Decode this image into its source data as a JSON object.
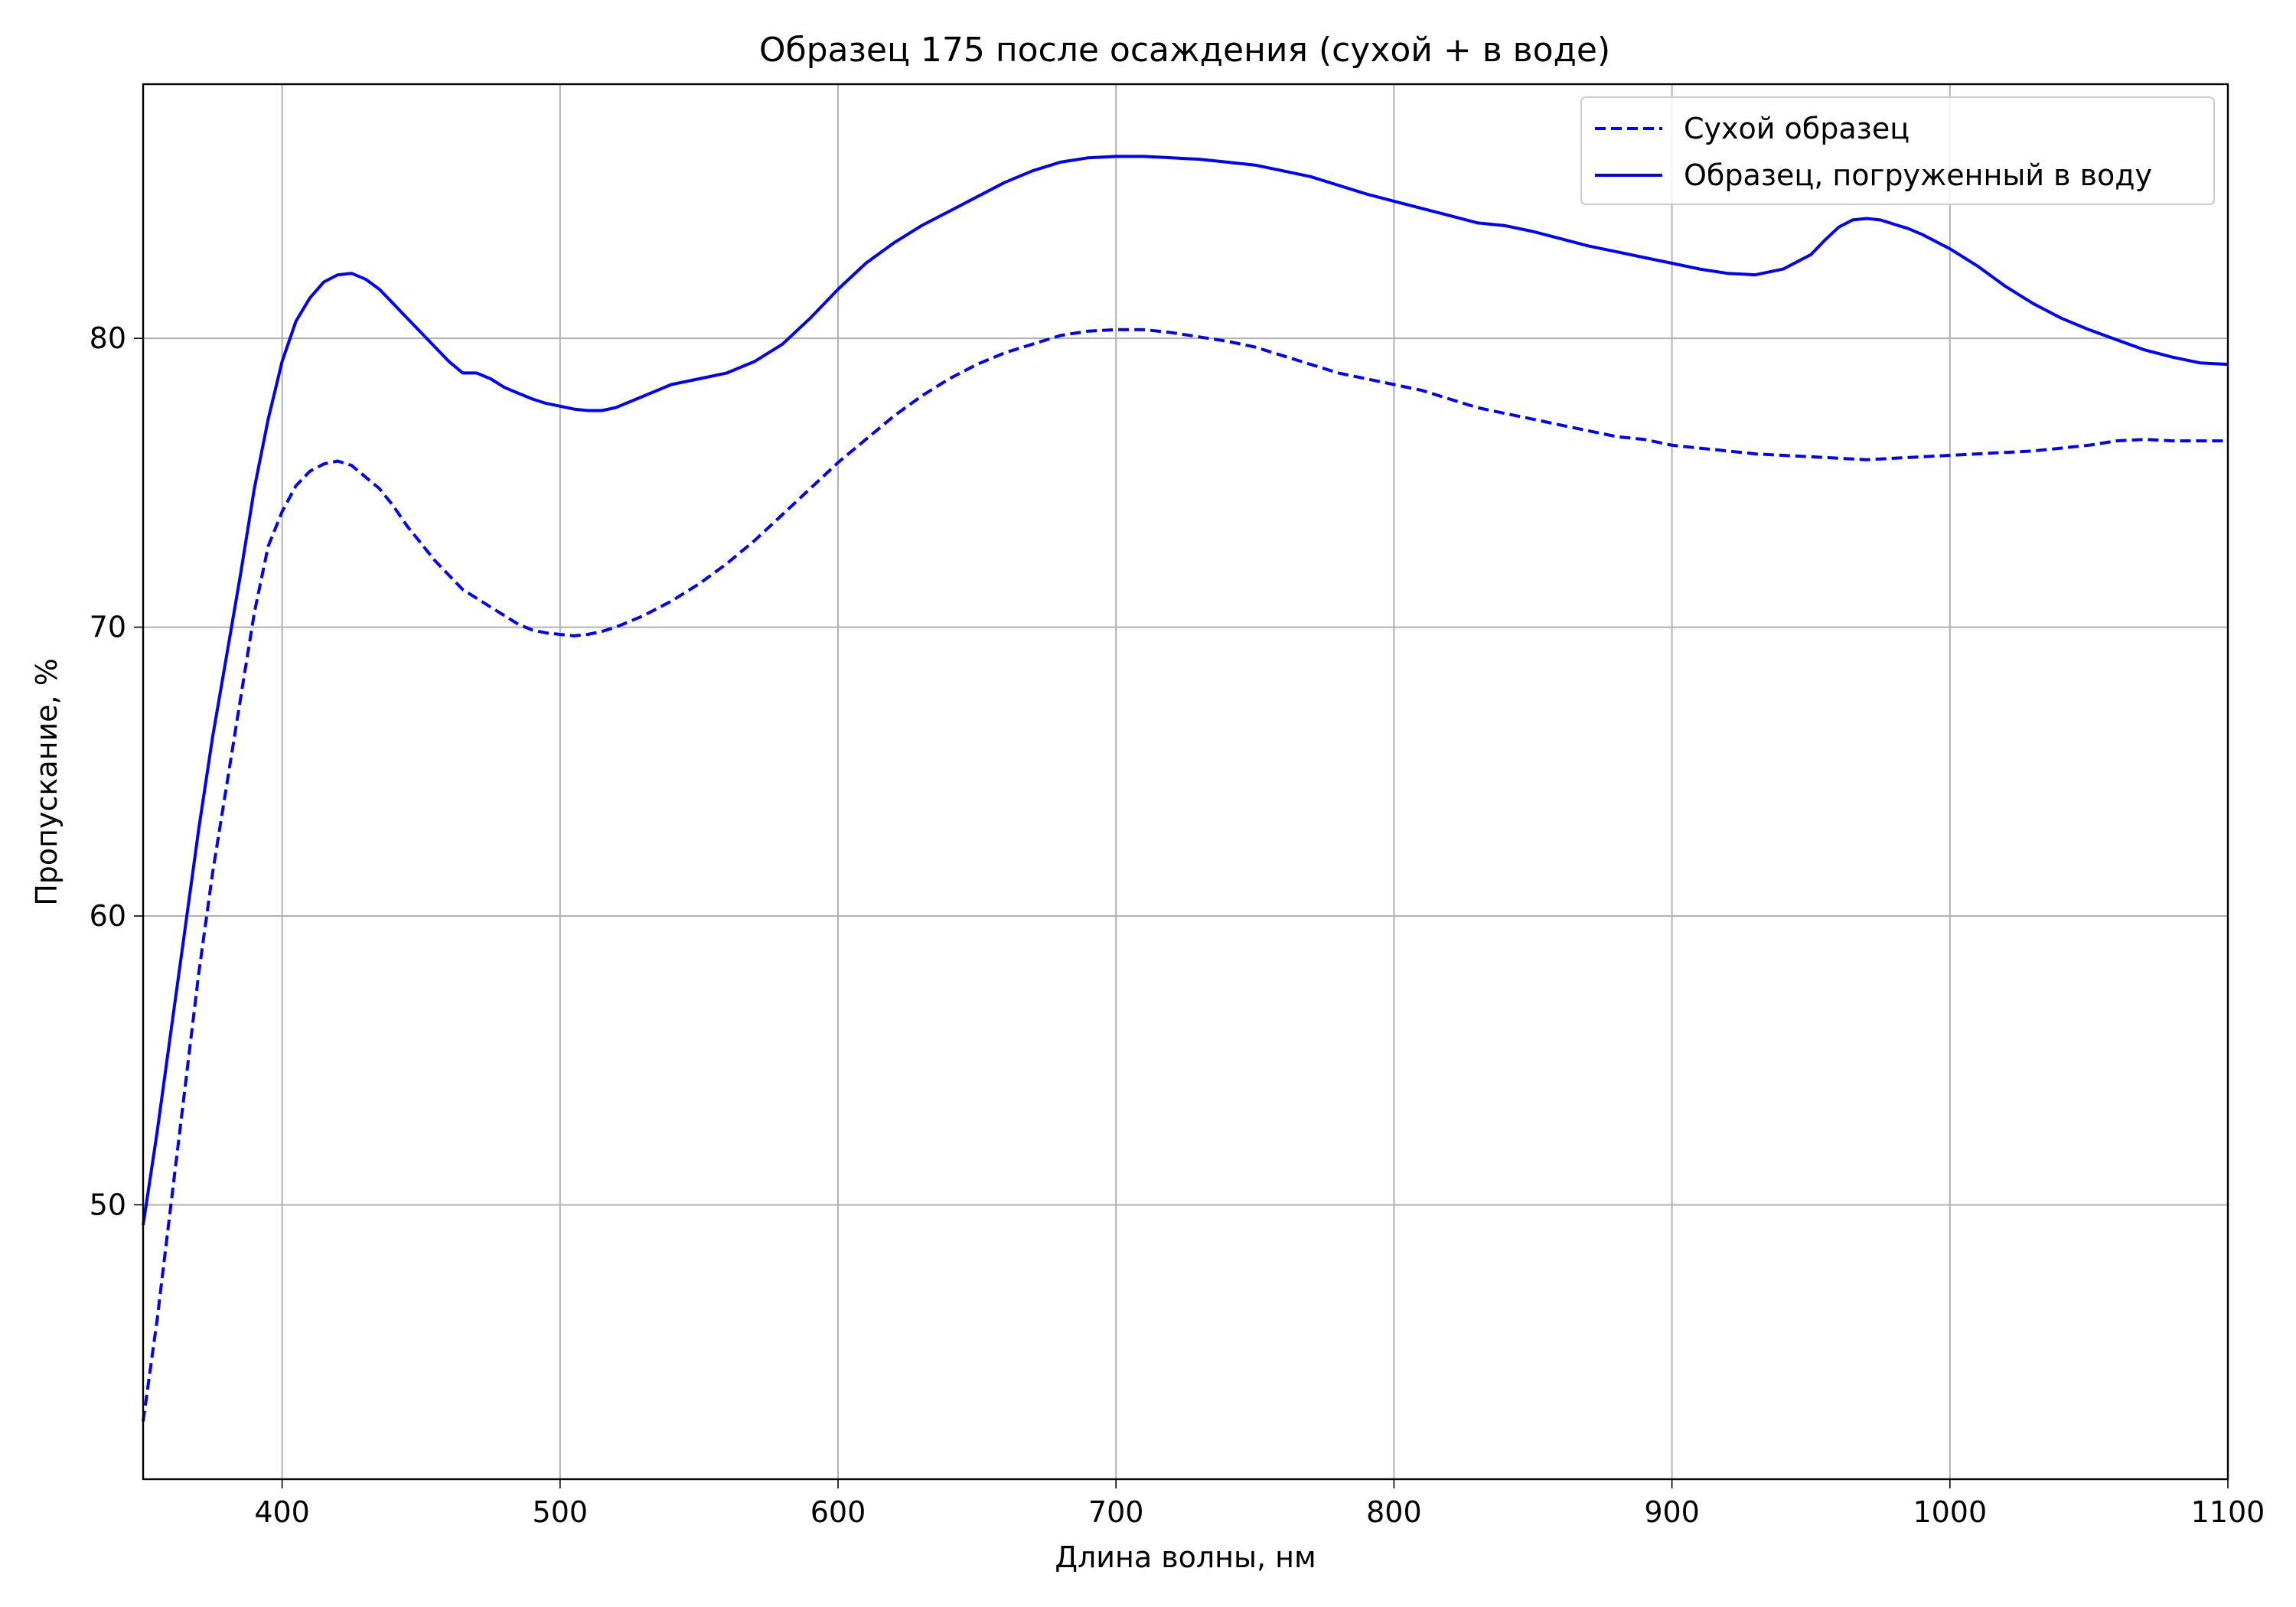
{
  "chart_data": {
    "type": "line",
    "title": "Образец 175 после осаждения (сухой + в воде)",
    "xlabel": "Длина волны, нм",
    "ylabel": "Пропускание, %",
    "xlim": [
      350,
      1100
    ],
    "ylim": [
      40.5,
      88.8
    ],
    "x_ticks": [
      400,
      500,
      600,
      700,
      800,
      900,
      1000,
      1100
    ],
    "y_ticks": [
      50,
      60,
      70,
      80
    ],
    "grid": true,
    "legend_position": "top-right",
    "colors": {
      "line": "#0000ff",
      "grid": "#b0b0b0",
      "axes": "#000000"
    },
    "series": [
      {
        "name": "Сухой образец",
        "style": "dashed",
        "color": "#0000ff",
        "points": [
          [
            350,
            42.5
          ],
          [
            355,
            46.0
          ],
          [
            360,
            50.0
          ],
          [
            365,
            54.0
          ],
          [
            370,
            58.0
          ],
          [
            375,
            61.5
          ],
          [
            380,
            64.5
          ],
          [
            385,
            67.5
          ],
          [
            390,
            70.5
          ],
          [
            395,
            72.8
          ],
          [
            400,
            74.0
          ],
          [
            405,
            74.9
          ],
          [
            410,
            75.4
          ],
          [
            415,
            75.65
          ],
          [
            420,
            75.75
          ],
          [
            425,
            75.6
          ],
          [
            430,
            75.2
          ],
          [
            435,
            74.8
          ],
          [
            440,
            74.2
          ],
          [
            445,
            73.5
          ],
          [
            450,
            72.9
          ],
          [
            455,
            72.3
          ],
          [
            460,
            71.8
          ],
          [
            465,
            71.3
          ],
          [
            470,
            71.0
          ],
          [
            475,
            70.7
          ],
          [
            480,
            70.4
          ],
          [
            485,
            70.1
          ],
          [
            490,
            69.9
          ],
          [
            495,
            69.8
          ],
          [
            500,
            69.75
          ],
          [
            505,
            69.7
          ],
          [
            510,
            69.75
          ],
          [
            515,
            69.85
          ],
          [
            520,
            70.0
          ],
          [
            530,
            70.4
          ],
          [
            540,
            70.9
          ],
          [
            550,
            71.5
          ],
          [
            560,
            72.2
          ],
          [
            570,
            73.0
          ],
          [
            580,
            73.9
          ],
          [
            590,
            74.8
          ],
          [
            600,
            75.7
          ],
          [
            610,
            76.5
          ],
          [
            620,
            77.3
          ],
          [
            630,
            78.0
          ],
          [
            640,
            78.6
          ],
          [
            650,
            79.1
          ],
          [
            660,
            79.5
          ],
          [
            670,
            79.8
          ],
          [
            680,
            80.1
          ],
          [
            690,
            80.25
          ],
          [
            700,
            80.3
          ],
          [
            710,
            80.3
          ],
          [
            720,
            80.2
          ],
          [
            730,
            80.05
          ],
          [
            740,
            79.9
          ],
          [
            750,
            79.7
          ],
          [
            760,
            79.4
          ],
          [
            770,
            79.1
          ],
          [
            780,
            78.8
          ],
          [
            790,
            78.6
          ],
          [
            800,
            78.4
          ],
          [
            810,
            78.2
          ],
          [
            820,
            77.9
          ],
          [
            830,
            77.6
          ],
          [
            840,
            77.4
          ],
          [
            850,
            77.2
          ],
          [
            860,
            77.0
          ],
          [
            870,
            76.8
          ],
          [
            880,
            76.6
          ],
          [
            890,
            76.5
          ],
          [
            900,
            76.3
          ],
          [
            910,
            76.2
          ],
          [
            920,
            76.1
          ],
          [
            930,
            76.0
          ],
          [
            940,
            75.95
          ],
          [
            950,
            75.9
          ],
          [
            960,
            75.85
          ],
          [
            970,
            75.8
          ],
          [
            980,
            75.85
          ],
          [
            990,
            75.9
          ],
          [
            1000,
            75.95
          ],
          [
            1010,
            76.0
          ],
          [
            1020,
            76.05
          ],
          [
            1030,
            76.1
          ],
          [
            1040,
            76.2
          ],
          [
            1050,
            76.3
          ],
          [
            1060,
            76.45
          ],
          [
            1070,
            76.5
          ],
          [
            1080,
            76.45
          ],
          [
            1090,
            76.45
          ],
          [
            1100,
            76.45
          ]
        ]
      },
      {
        "name": "Образец, погруженный в воду",
        "style": "solid",
        "color": "#0000ff",
        "points": [
          [
            350,
            49.3
          ],
          [
            355,
            52.5
          ],
          [
            360,
            56.0
          ],
          [
            365,
            59.5
          ],
          [
            370,
            63.0
          ],
          [
            375,
            66.2
          ],
          [
            380,
            69.0
          ],
          [
            385,
            71.8
          ],
          [
            390,
            74.8
          ],
          [
            395,
            77.2
          ],
          [
            400,
            79.2
          ],
          [
            405,
            80.6
          ],
          [
            410,
            81.4
          ],
          [
            415,
            81.95
          ],
          [
            420,
            82.2
          ],
          [
            425,
            82.25
          ],
          [
            430,
            82.05
          ],
          [
            435,
            81.7
          ],
          [
            440,
            81.2
          ],
          [
            445,
            80.7
          ],
          [
            450,
            80.2
          ],
          [
            455,
            79.7
          ],
          [
            460,
            79.2
          ],
          [
            465,
            78.8
          ],
          [
            470,
            78.8
          ],
          [
            475,
            78.6
          ],
          [
            480,
            78.3
          ],
          [
            485,
            78.1
          ],
          [
            490,
            77.9
          ],
          [
            495,
            77.75
          ],
          [
            500,
            77.65
          ],
          [
            505,
            77.55
          ],
          [
            510,
            77.5
          ],
          [
            515,
            77.5
          ],
          [
            520,
            77.6
          ],
          [
            530,
            78.0
          ],
          [
            540,
            78.4
          ],
          [
            550,
            78.6
          ],
          [
            560,
            78.8
          ],
          [
            570,
            79.2
          ],
          [
            580,
            79.8
          ],
          [
            590,
            80.7
          ],
          [
            600,
            81.7
          ],
          [
            610,
            82.6
          ],
          [
            620,
            83.3
          ],
          [
            630,
            83.9
          ],
          [
            640,
            84.4
          ],
          [
            650,
            84.9
          ],
          [
            660,
            85.4
          ],
          [
            670,
            85.8
          ],
          [
            680,
            86.1
          ],
          [
            690,
            86.25
          ],
          [
            700,
            86.3
          ],
          [
            710,
            86.3
          ],
          [
            720,
            86.25
          ],
          [
            730,
            86.2
          ],
          [
            740,
            86.1
          ],
          [
            750,
            86.0
          ],
          [
            760,
            85.8
          ],
          [
            770,
            85.6
          ],
          [
            780,
            85.3
          ],
          [
            790,
            85.0
          ],
          [
            800,
            84.75
          ],
          [
            810,
            84.5
          ],
          [
            820,
            84.25
          ],
          [
            830,
            84.0
          ],
          [
            840,
            83.9
          ],
          [
            850,
            83.7
          ],
          [
            860,
            83.45
          ],
          [
            870,
            83.2
          ],
          [
            880,
            83.0
          ],
          [
            890,
            82.8
          ],
          [
            900,
            82.6
          ],
          [
            910,
            82.4
          ],
          [
            920,
            82.25
          ],
          [
            930,
            82.2
          ],
          [
            940,
            82.4
          ],
          [
            950,
            82.9
          ],
          [
            955,
            83.4
          ],
          [
            960,
            83.85
          ],
          [
            965,
            84.1
          ],
          [
            970,
            84.15
          ],
          [
            975,
            84.1
          ],
          [
            980,
            83.95
          ],
          [
            985,
            83.8
          ],
          [
            990,
            83.6
          ],
          [
            1000,
            83.1
          ],
          [
            1010,
            82.5
          ],
          [
            1020,
            81.8
          ],
          [
            1030,
            81.2
          ],
          [
            1040,
            80.7
          ],
          [
            1050,
            80.3
          ],
          [
            1060,
            79.95
          ],
          [
            1070,
            79.6
          ],
          [
            1080,
            79.35
          ],
          [
            1090,
            79.15
          ],
          [
            1100,
            79.1
          ]
        ]
      }
    ]
  }
}
